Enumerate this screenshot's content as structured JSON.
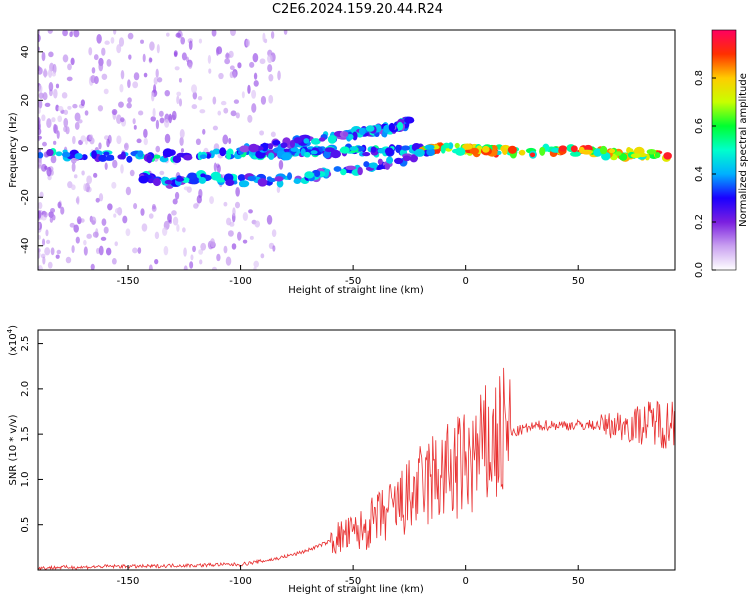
{
  "title": "C2E6.2024.159.20.44.R24",
  "chart_data": [
    {
      "type": "heatmap",
      "xlabel": "Height of straight line (km)",
      "ylabel": "Frequency (Hz)",
      "xlim": [
        -190,
        93
      ],
      "ylim": [
        -50,
        49
      ],
      "x_ticks": [
        "-150",
        "-100",
        "-50",
        "0",
        "50"
      ],
      "y_ticks": [
        "40",
        "20",
        "0",
        "-20",
        "-40"
      ],
      "colorbar": {
        "label": "Normalized spectral amplitude",
        "range": [
          0,
          1
        ],
        "ticks": [
          "0.0",
          "0.2",
          "0.4",
          "0.6",
          "0.8"
        ],
        "colors": [
          "#ffffff",
          "#c9a0f0",
          "#7b1fe0",
          "#1a00ff",
          "#00b0ff",
          "#00ffcc",
          "#00ff30",
          "#c8ff00",
          "#ffcc00",
          "#ff3000",
          "#ff0060"
        ]
      },
      "features": [
        {
          "description_of_trace": "carrier",
          "x": [
            -190,
            -150,
            -120,
            -100,
            -80,
            -60,
            -40,
            -20,
            0,
            20,
            50,
            70,
            90
          ],
          "y": [
            -2,
            -3,
            -3,
            -2,
            -2,
            -1,
            -1,
            0,
            0,
            -1,
            -1,
            -2,
            -3
          ]
        },
        {
          "description_of_trace": "rising",
          "x": [
            -100,
            -80,
            -60,
            -45,
            -35,
            -25
          ],
          "y": [
            -1,
            2,
            5,
            7,
            8,
            11
          ]
        },
        {
          "description_of_trace": "lower",
          "x": [
            -145,
            -130,
            -120,
            -100,
            -80,
            -60,
            -40,
            -25,
            -15
          ],
          "y": [
            -12,
            -14,
            -12,
            -13,
            -13,
            -10,
            -7,
            -4,
            0
          ]
        }
      ]
    },
    {
      "type": "line",
      "xlabel": "Height of straight line (km)",
      "ylabel": "SNR (10 * v/v)",
      "multiplier": "(x10",
      "multiplier_exp": "4",
      "multiplier_close": ")",
      "xlim": [
        -190,
        93
      ],
      "ylim": [
        0,
        2.65
      ],
      "x_ticks": [
        "-150",
        "-100",
        "-50",
        "0",
        "50"
      ],
      "y_ticks": [
        "0.5",
        "1.0",
        "1.5",
        "2.0",
        "2.5"
      ],
      "color": "#e83030",
      "x": [
        -190,
        -180,
        -170,
        -160,
        -150,
        -140,
        -130,
        -120,
        -110,
        -100,
        -95,
        -90,
        -85,
        -80,
        -75,
        -70,
        -65,
        -60,
        -55,
        -50,
        -45,
        -40,
        -35,
        -30,
        -25,
        -20,
        -15,
        -10,
        -5,
        0,
        5,
        10,
        15,
        20,
        25,
        30,
        35,
        40,
        45,
        50,
        55,
        60,
        65,
        70,
        75,
        80,
        85,
        90,
        93
      ],
      "y": [
        0.02,
        0.03,
        0.03,
        0.04,
        0.04,
        0.04,
        0.05,
        0.05,
        0.06,
        0.06,
        0.08,
        0.1,
        0.12,
        0.15,
        0.18,
        0.22,
        0.27,
        0.32,
        0.37,
        0.4,
        0.45,
        0.55,
        0.62,
        0.7,
        0.8,
        0.9,
        1.0,
        1.05,
        1.1,
        1.15,
        1.25,
        1.35,
        1.45,
        1.5,
        1.55,
        1.58,
        1.6,
        1.6,
        1.6,
        1.6,
        1.6,
        1.6,
        1.6,
        1.6,
        1.6,
        1.62,
        1.65,
        1.6,
        1.7
      ]
    }
  ]
}
